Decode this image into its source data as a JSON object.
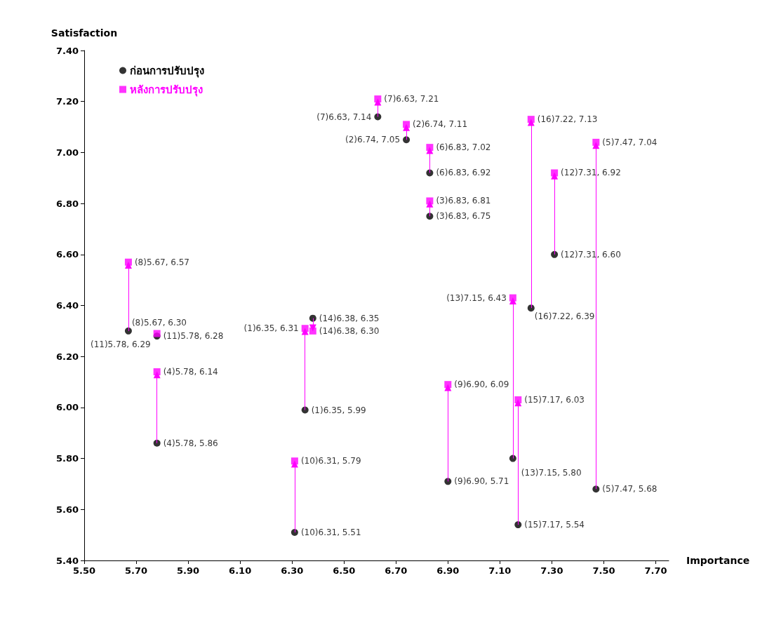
{
  "chart_data": {
    "type": "scatter",
    "xlabel": "Importance",
    "ylabel": "Satisfaction",
    "xlim": [
      5.5,
      7.75
    ],
    "ylim": [
      5.4,
      7.4
    ],
    "xticks": [
      {
        "value": 5.5,
        "label": "5.50"
      },
      {
        "value": 5.7,
        "label": "5.70"
      },
      {
        "value": 5.9,
        "label": "5.90"
      },
      {
        "value": 6.1,
        "label": "6.10"
      },
      {
        "value": 6.3,
        "label": "6.30"
      },
      {
        "value": 6.5,
        "label": "6.50"
      },
      {
        "value": 6.7,
        "label": "6.70"
      },
      {
        "value": 6.9,
        "label": "6.90"
      },
      {
        "value": 7.1,
        "label": "7.10"
      },
      {
        "value": 7.3,
        "label": "7.30"
      },
      {
        "value": 7.5,
        "label": "7.50"
      },
      {
        "value": 7.7,
        "label": "7.70"
      }
    ],
    "yticks": [
      {
        "value": 5.4,
        "label": "5.40"
      },
      {
        "value": 5.6,
        "label": "5.60"
      },
      {
        "value": 5.8,
        "label": "5.80"
      },
      {
        "value": 6.0,
        "label": "6.00"
      },
      {
        "value": 6.2,
        "label": "6.20"
      },
      {
        "value": 6.4,
        "label": "6.40"
      },
      {
        "value": 6.6,
        "label": "6.60"
      },
      {
        "value": 6.8,
        "label": "6.80"
      },
      {
        "value": 7.0,
        "label": "7.00"
      },
      {
        "value": 7.2,
        "label": "7.20"
      },
      {
        "value": 7.4,
        "label": "7.40"
      }
    ],
    "grid": false,
    "legend": "top left",
    "series": [
      {
        "name": "ก่อนการปรับปรุง",
        "color": "#000000",
        "marker": "circle",
        "x": [
          6.35,
          6.74,
          6.83,
          5.78,
          7.47,
          6.83,
          6.63,
          5.67,
          6.9,
          6.31,
          5.78,
          7.31,
          7.15,
          6.38,
          7.17,
          7.22
        ],
        "values": [
          5.99,
          7.05,
          6.75,
          5.86,
          5.68,
          6.92,
          7.14,
          6.3,
          5.71,
          5.51,
          6.28,
          6.6,
          5.8,
          6.35,
          5.54,
          6.39
        ],
        "value_labels": [
          "(1)6.35, 5.99",
          "(2)6.74, 7.05",
          "(3)6.83, 6.75",
          "(4)5.78, 5.86",
          "(5)7.47, 5.68",
          "(6)6.83, 6.92",
          "(7)6.63, 7.14",
          "(8)5.67, 6.30",
          "(9)6.90, 5.71",
          "(10)6.31, 5.51",
          "(11)5.78, 6.28",
          "(12)7.31, 6.60",
          "(13)7.15, 5.80",
          "(14)6.38, 6.35",
          "(15)7.17, 5.54",
          "(16)7.22, 6.39"
        ]
      },
      {
        "name": "หลังการปรับปรุง",
        "color": "#ff00ff",
        "marker": "square",
        "x": [
          6.35,
          6.74,
          6.83,
          5.78,
          7.47,
          6.83,
          6.63,
          5.67,
          6.9,
          6.31,
          5.78,
          7.31,
          7.15,
          6.38,
          7.17,
          7.22
        ],
        "values": [
          6.31,
          7.11,
          6.81,
          6.14,
          7.04,
          7.02,
          7.21,
          6.57,
          6.09,
          5.79,
          6.29,
          6.92,
          6.43,
          6.3,
          6.03,
          7.13
        ],
        "value_labels": [
          "(1)6.35, 6.31",
          "(2)6.74, 7.11",
          "(3)6.83, 6.81",
          "(4)5.78, 6.14",
          "(5)7.47, 7.04",
          "(6)6.83, 7.02",
          "(7)6.63, 7.21",
          "(8)5.67, 6.57",
          "(9)6.90, 6.09",
          "(10)6.31, 5.79",
          "(11)5.78, 6.29",
          "(12)7.31, 6.92",
          "(13)7.15, 6.43",
          "(14)6.38, 6.30",
          "(15)7.17, 6.03",
          "(16)7.22, 7.13"
        ]
      }
    ]
  }
}
